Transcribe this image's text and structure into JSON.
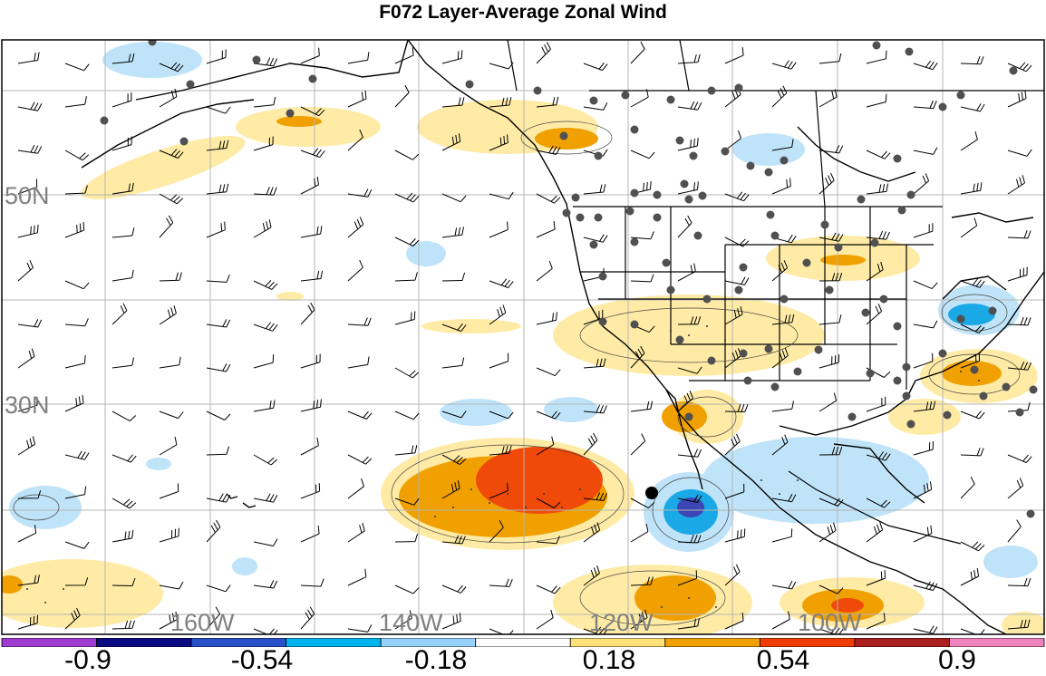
{
  "title": "F072 Layer-Average Zonal Wind",
  "map": {
    "lat_labels": [
      "50N",
      "30N"
    ],
    "lon_labels": [
      "160W",
      "140W",
      "120W",
      "100W"
    ]
  },
  "legend": {
    "bins": [
      {
        "color": "#a03cd2"
      },
      {
        "color": "#0a0a82"
      },
      {
        "color": "#2850c8"
      },
      {
        "color": "#00b4f0"
      },
      {
        "color": "#96d2fa"
      },
      {
        "color": "#ffffff"
      },
      {
        "color": "#ffe178"
      },
      {
        "color": "#f0a000"
      },
      {
        "color": "#f03c00"
      },
      {
        "color": "#aa1e1e"
      },
      {
        "color": "#f082be"
      }
    ],
    "tick_labels": [
      "-0.9",
      "-0.54",
      "-0.18",
      "0.18",
      "0.54",
      "0.9"
    ]
  },
  "colors": {
    "grid": "#b4b4b4",
    "coast": "#000000",
    "station": "#505050",
    "neg_light": "#bfe3f8",
    "neg_mid": "#1aa8e6",
    "neg_dark": "#3c46b4",
    "pos_light": "#ffeba5",
    "pos_mid": "#f0a000",
    "pos_dark": "#f04a0a"
  }
}
